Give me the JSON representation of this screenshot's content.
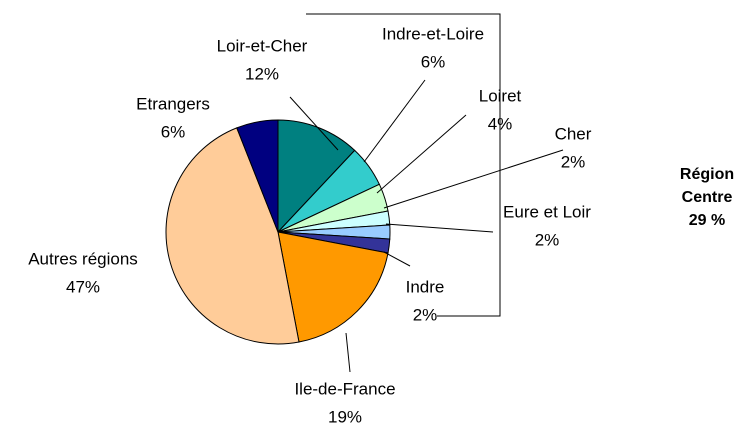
{
  "chart_data": {
    "type": "pie",
    "categories": [
      "Loir-et-Cher",
      "Indre-et-Loire",
      "Loiret",
      "Cher",
      "Eure et Loir",
      "Indre",
      "Ile-de-France",
      "Autres régions",
      "Etrangers"
    ],
    "values": [
      12,
      6,
      4,
      2,
      2,
      2,
      19,
      47,
      6
    ],
    "value_labels": [
      "12%",
      "6%",
      "4%",
      "2%",
      "2%",
      "2%",
      "19%",
      "47%",
      "6%"
    ],
    "colors": [
      "#008080",
      "#33cccc",
      "#ccffcc",
      "#ccffff",
      "#99ccff",
      "#333399",
      "#ff9900",
      "#ffcc99",
      "#000080"
    ],
    "annotation": [
      "Région",
      "Centre",
      "29 %"
    ]
  }
}
